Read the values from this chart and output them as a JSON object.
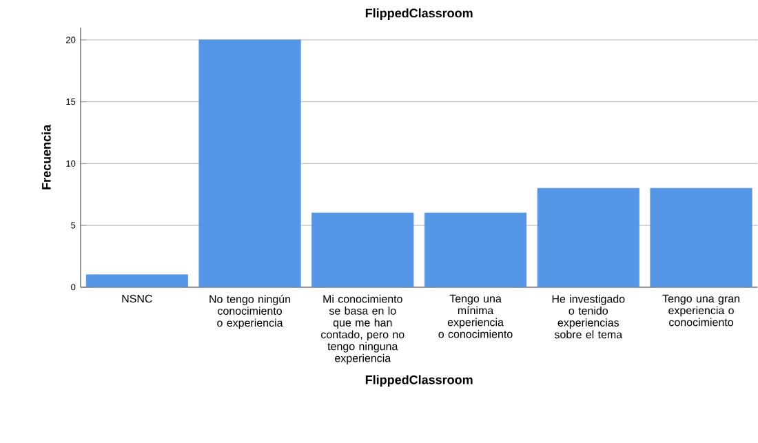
{
  "chart_data": {
    "type": "bar",
    "title": "FlippedClassroom",
    "xlabel": "FlippedClassroom",
    "ylabel": "Frecuencia",
    "categories": [
      "NSNC",
      "No tengo ningún conocimiento o experiencia",
      "Mi conocimiento se basa en lo que me han contado, pero no tengo ninguna experiencia",
      "Tengo una mínima experiencia o conocimiento",
      "He investigado o tenido experiencias sobre el tema",
      "Tengo una gran experiencia o conocimiento"
    ],
    "values": [
      1,
      20,
      6,
      6,
      8,
      8
    ],
    "color": "#5596e6",
    "ylim": [
      0,
      21
    ],
    "yticks": [
      0,
      5,
      10,
      15,
      20
    ],
    "grid": "y"
  }
}
